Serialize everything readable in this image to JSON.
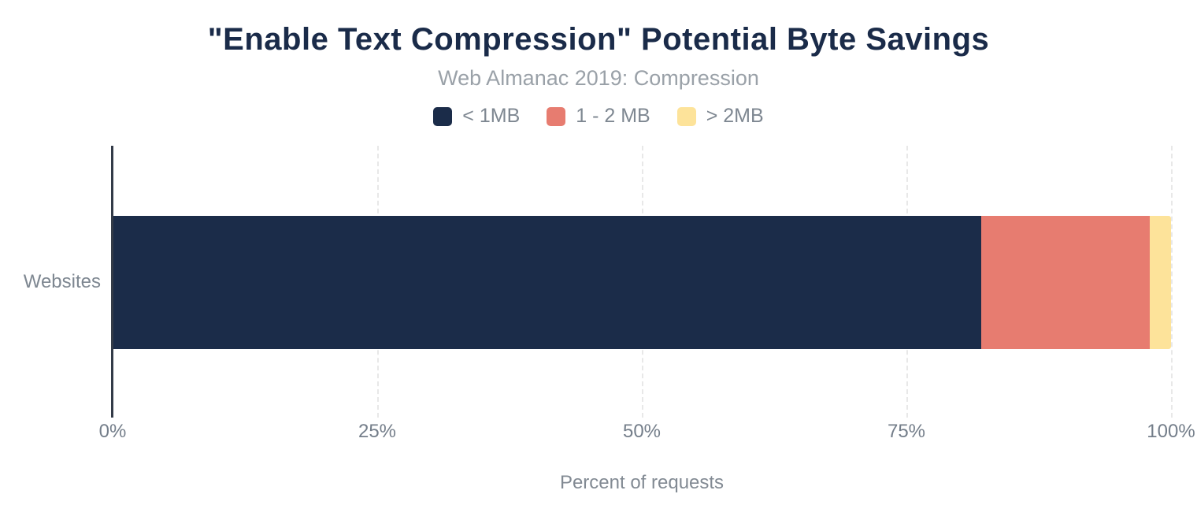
{
  "title": "\"Enable Text Compression\" Potential Byte Savings",
  "subtitle": "Web Almanac 2019: Compression",
  "chart_data": {
    "type": "bar",
    "orientation": "horizontal",
    "stacked": true,
    "title": "\"Enable Text Compression\" Potential Byte Savings",
    "subtitle": "Web Almanac 2019: Compression",
    "categories": [
      "Websites"
    ],
    "series": [
      {
        "name": "< 1MB",
        "values": [
          82.1
        ],
        "color": "#1b2c49"
      },
      {
        "name": "1 - 2 MB",
        "values": [
          15.9
        ],
        "color": "#e77c70"
      },
      {
        "name": "> 2MB",
        "values": [
          2.0
        ],
        "color": "#fde39a"
      }
    ],
    "xlabel": "Percent of requests",
    "ylabel": "Websites",
    "xlim": [
      0,
      100
    ],
    "xticks": [
      "0%",
      "25%",
      "50%",
      "75%",
      "100%"
    ],
    "grid": "vertical-dashed",
    "legend_position": "top"
  },
  "colors": {
    "title": "#1a2b49",
    "subtitle": "#9aa1a8",
    "axis_line": "#333b48",
    "gridline": "#e8e8e8",
    "tick_label": "#747e8a",
    "axis_label": "#7e8791",
    "background": "#ffffff"
  }
}
